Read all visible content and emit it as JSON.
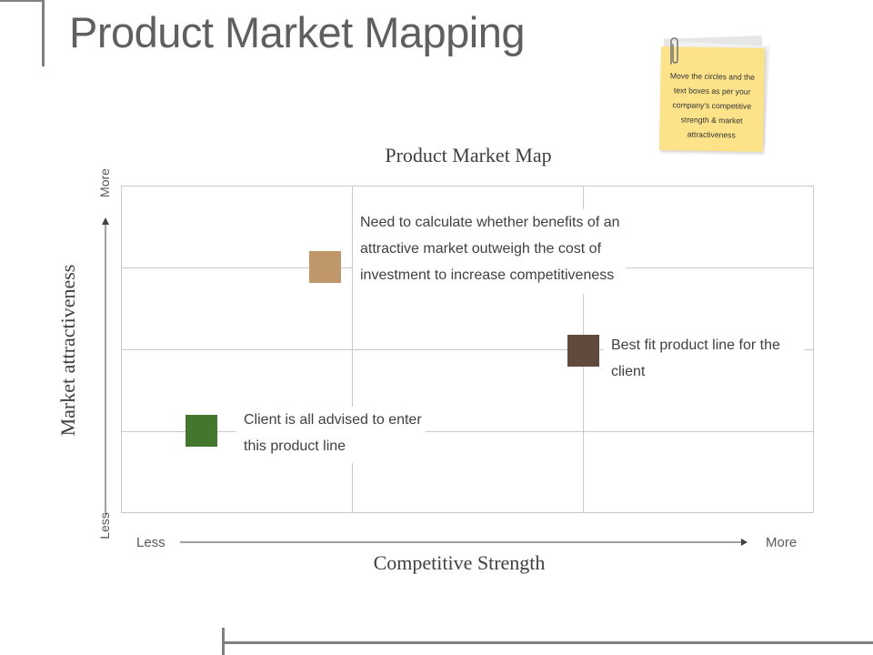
{
  "page": {
    "title": "Product Market Mapping"
  },
  "sticky_note": {
    "text": "Move the circles and the text boxes as per your company's competitive strength & market attractiveness",
    "color": "#fce38a"
  },
  "map": {
    "title": "Product Market Map",
    "y_axis": {
      "title": "Market attractiveness",
      "more_label": "More",
      "less_label": "Less"
    },
    "x_axis": {
      "title": "Competitive Strength",
      "less_label": "Less",
      "more_label": "More"
    },
    "items": [
      {
        "text": "Need to calculate whether benefits of an attractive market outweigh the cost of investment to increase competitiveness",
        "color": "#c0976a"
      },
      {
        "text": "Best fit product line for the client",
        "color": "#5f4a3d"
      },
      {
        "text": "Client is all advised to enter this product line",
        "color": "#43772d"
      }
    ]
  }
}
